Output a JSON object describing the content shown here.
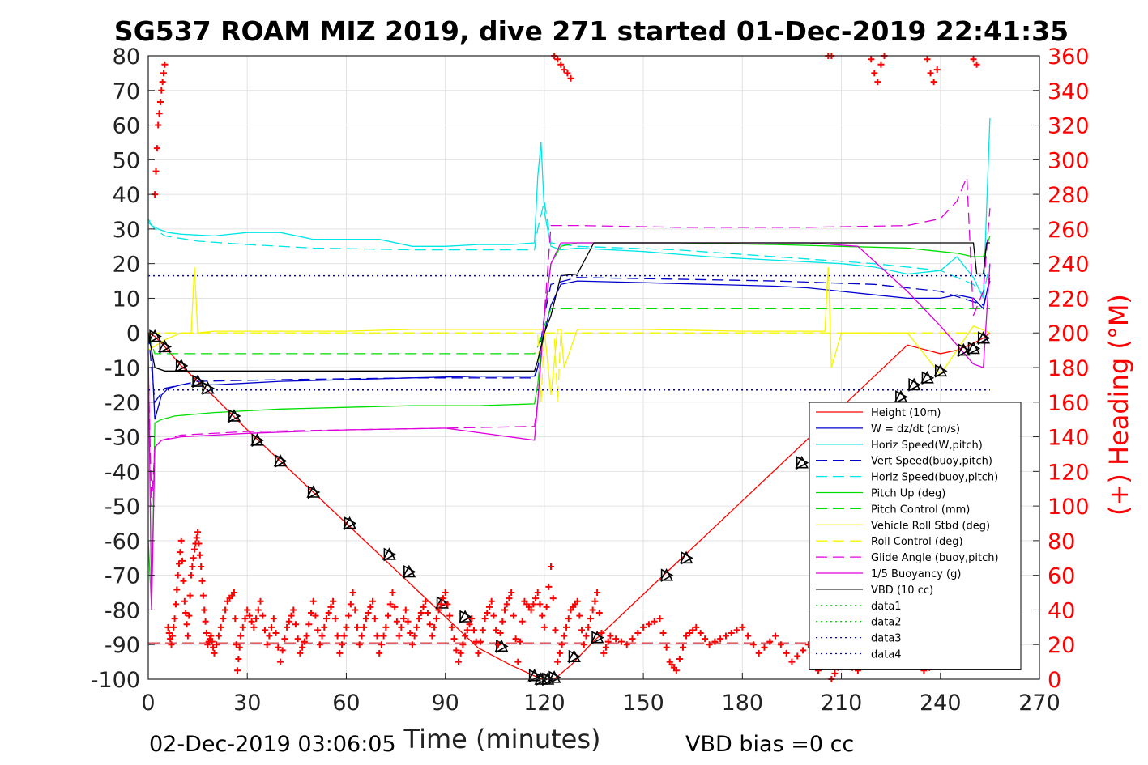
{
  "chart_data": {
    "type": "line",
    "title": "SG537 ROAM MIZ 2019, dive 271 started 01-Dec-2019 22:41:35",
    "xlabel": "Time (minutes)",
    "ylabel": "",
    "ylabel_right": "(+) Heading (°M)",
    "xlim": [
      0,
      270
    ],
    "ylim": [
      -100,
      80
    ],
    "ylim_right": [
      0,
      360
    ],
    "x_ticks": [
      "0",
      "30",
      "60",
      "90",
      "120",
      "150",
      "180",
      "210",
      "240",
      "270"
    ],
    "y_ticks": [
      "80",
      "70",
      "60",
      "50",
      "40",
      "30",
      "20",
      "10",
      "0",
      "-10",
      "-20",
      "-30",
      "-40",
      "-50",
      "-60",
      "-70",
      "-80",
      "-90",
      "-100"
    ],
    "y_ticks_right": [
      "360",
      "340",
      "320",
      "300",
      "280",
      "260",
      "240",
      "220",
      "200",
      "180",
      "160",
      "140",
      "120",
      "100",
      "80",
      "60",
      "40",
      "20",
      "0"
    ],
    "grid": true,
    "legend_position": "bottom-right",
    "footer_left": "02-Dec-2019 03:06:05",
    "footer_right": "VBD bias =0 cc",
    "colors": {
      "height": "#ff0000",
      "w": "#0000cc",
      "horiz_speed": "#00e5e5",
      "pitch": "#00dd00",
      "roll": "#f5f500",
      "glide": "#dd00dd",
      "vbd": "#000000",
      "heading": "#ff0000"
    },
    "series": [
      {
        "name": "Height (10m)",
        "style": "solid",
        "color": "#ff0000",
        "x": [
          0,
          2,
          5,
          10,
          15,
          20,
          30,
          40,
          50,
          60,
          70,
          80,
          90,
          100,
          110,
          118,
          120,
          123,
          128,
          135,
          145,
          155,
          165,
          180,
          195,
          210,
          220,
          230,
          240,
          245,
          250,
          253,
          255
        ],
        "y": [
          0,
          -1,
          -4,
          -9.5,
          -14,
          -18.5,
          -28,
          -37,
          -46,
          -55,
          -64,
          -73,
          -82,
          -91,
          -96,
          -99.5,
          -100,
          -100,
          -96,
          -89,
          -80,
          -71,
          -62,
          -48.5,
          -35,
          -21.5,
          -12.5,
          -3.5,
          -6,
          -5,
          -3,
          -1.5,
          0
        ]
      },
      {
        "name": "W = dz/dt (cm/s)",
        "style": "solid",
        "color": "#0000cc",
        "x": [
          0,
          1,
          2,
          4,
          6,
          10,
          20,
          30,
          40,
          60,
          80,
          100,
          117,
          118,
          120,
          122,
          125,
          130,
          150,
          170,
          190,
          200,
          210,
          220,
          230,
          240,
          245,
          250,
          253,
          255
        ],
        "y": [
          0,
          -5,
          -25,
          -18,
          -16,
          -15,
          -15,
          -14.5,
          -14,
          -13.5,
          -13,
          -12.5,
          -12.5,
          -10,
          0,
          8,
          14,
          15,
          14.5,
          14,
          13.5,
          13,
          12,
          11,
          10,
          10,
          11,
          10,
          7,
          16
        ]
      },
      {
        "name": "Horiz Speed(W,pitch)",
        "style": "solid",
        "color": "#00e5e5",
        "x": [
          0,
          1,
          3,
          6,
          10,
          20,
          30,
          40,
          50,
          60,
          70,
          80,
          90,
          100,
          110,
          117,
          118,
          119,
          120,
          122,
          125,
          130,
          150,
          170,
          190,
          210,
          220,
          230,
          240,
          245,
          250,
          253,
          255
        ],
        "y": [
          33,
          31,
          30,
          29,
          28.5,
          28,
          29,
          29,
          27,
          27,
          27,
          25,
          25,
          25.5,
          25.5,
          26,
          45,
          55,
          35,
          25,
          24,
          24.5,
          23.5,
          22,
          21,
          20,
          19,
          17,
          18,
          22,
          16,
          10,
          62
        ]
      },
      {
        "name": "Vert Speed(buoy,pitch)",
        "style": "dashed",
        "color": "#0000cc",
        "x": [
          0,
          2,
          5,
          15,
          40,
          80,
          117,
          118,
          120,
          122,
          130,
          160,
          190,
          220,
          240,
          250,
          253,
          255
        ],
        "y": [
          0,
          -20,
          -16,
          -14,
          -13.5,
          -13,
          -13,
          -10,
          5,
          14,
          16,
          15.5,
          15,
          14,
          12,
          9,
          8,
          15
        ]
      },
      {
        "name": "Horiz Speed(buoy,pitch)",
        "style": "dashed",
        "color": "#00e5e5",
        "x": [
          0,
          2,
          5,
          15,
          30,
          50,
          80,
          117,
          118,
          120,
          122,
          130,
          160,
          190,
          220,
          240,
          250,
          253,
          255
        ],
        "y": [
          32,
          30,
          28,
          26.5,
          25.5,
          24.5,
          24,
          24,
          30,
          38,
          26,
          25,
          24,
          22,
          20,
          18,
          14,
          11,
          20
        ]
      },
      {
        "name": "Pitch Up (deg)",
        "style": "solid",
        "color": "#00dd00",
        "x": [
          0,
          1,
          2,
          4,
          8,
          20,
          40,
          60,
          80,
          100,
          117,
          118,
          120,
          122,
          125,
          130,
          160,
          190,
          210,
          230,
          245,
          250,
          253,
          255
        ],
        "y": [
          -60,
          -80,
          -26,
          -25,
          -24,
          -23,
          -22,
          -21.5,
          -21,
          -21,
          -20.5,
          -15,
          5,
          20,
          25,
          26,
          26,
          25.5,
          25,
          24.5,
          23,
          22,
          22,
          28
        ]
      },
      {
        "name": "Pitch Control (mm)",
        "style": "dashed",
        "color": "#00dd00",
        "x": [
          0,
          2,
          10,
          117,
          118,
          120,
          122,
          255
        ],
        "y": [
          0,
          -6,
          -6,
          -6,
          -4,
          2,
          7,
          7
        ]
      },
      {
        "name": "Vehicle Roll Stbd (deg)",
        "style": "solid",
        "color": "#f5f500",
        "x": [
          0,
          5,
          10,
          13,
          14,
          15,
          20,
          40,
          60,
          80,
          100,
          117,
          120,
          122,
          124,
          125,
          126,
          130,
          150,
          180,
          205,
          206,
          207,
          210,
          230,
          240,
          250,
          255
        ],
        "y": [
          -5,
          -2,
          0,
          0,
          19,
          0,
          0.5,
          0.5,
          0.5,
          1,
          1,
          1,
          1,
          -18,
          1,
          1,
          -10,
          1,
          1,
          0.5,
          0.5,
          19,
          -10,
          0,
          0,
          -12,
          2,
          0
        ]
      },
      {
        "name": "Roll Control (deg)",
        "style": "dashed",
        "color": "#f5f500",
        "x": [
          0,
          10,
          117,
          118,
          119,
          120,
          123,
          124,
          125,
          255
        ],
        "y": [
          0,
          0,
          0,
          0,
          -20,
          0,
          0,
          -20,
          0,
          0
        ]
      },
      {
        "name": "Glide Angle (buoy,pitch)",
        "style": "dashed",
        "color": "#dd00dd",
        "x": [
          0,
          1,
          2,
          4,
          10,
          30,
          60,
          90,
          117,
          118,
          120,
          122,
          130,
          160,
          200,
          230,
          240,
          245,
          248,
          250,
          253,
          255
        ],
        "y": [
          -10,
          -50,
          -33,
          -31,
          -29.5,
          -28.5,
          -28,
          -27.5,
          -27,
          -20,
          5,
          31,
          31,
          30.5,
          30.5,
          31,
          33,
          38,
          45,
          5,
          12,
          36
        ]
      },
      {
        "name": "1/5 Buoyancy (g)",
        "style": "solid",
        "color": "#dd00dd",
        "x": [
          0,
          1,
          2,
          4,
          10,
          30,
          60,
          90,
          117,
          118,
          120,
          122,
          125,
          130,
          160,
          190,
          200,
          215,
          230,
          240,
          250,
          253,
          255
        ],
        "y": [
          -5,
          -80,
          -33,
          -31,
          -30,
          -29,
          -28,
          -27.5,
          -31,
          -20,
          5,
          20,
          26,
          26,
          26,
          26,
          26,
          25,
          12,
          2,
          -9,
          -10,
          20
        ]
      },
      {
        "name": "VBD (10 cc)",
        "style": "solid",
        "color": "#000000",
        "x": [
          0,
          1,
          2,
          5,
          10,
          117,
          118,
          119,
          120,
          122,
          125,
          130,
          135,
          250,
          251,
          253,
          254,
          255
        ],
        "y": [
          0,
          -5,
          -10,
          -11,
          -11,
          -11,
          -8,
          -4,
          0,
          5,
          16.5,
          17,
          26,
          26,
          17,
          17,
          26,
          26
        ]
      },
      {
        "name": "data1",
        "style": "dotted",
        "color": "#00dd00",
        "x": [],
        "y": []
      },
      {
        "name": "data2",
        "style": "dotted",
        "color": "#00dd00",
        "x": [],
        "y": []
      },
      {
        "name": "data3",
        "style": "dotted",
        "color": "#0000cc",
        "x": [
          0,
          255
        ],
        "y": [
          16.5,
          16.5
        ]
      },
      {
        "name": "data4",
        "style": "dotted",
        "color": "#0000cc",
        "x": [
          0,
          255
        ],
        "y": [
          -16.5,
          -16.5
        ]
      }
    ],
    "heading_series": {
      "name": "(+) Heading",
      "axis": "right",
      "marker": "+",
      "color": "#ff0000",
      "x": [
        2,
        3,
        4,
        5,
        6,
        7,
        8,
        9,
        10,
        11,
        12,
        13,
        14,
        15,
        16,
        17,
        18,
        19,
        20,
        22,
        24,
        26,
        27,
        28,
        30,
        32,
        34,
        36,
        38,
        40,
        42,
        44,
        46,
        48,
        50,
        52,
        54,
        56,
        58,
        60,
        62,
        64,
        66,
        68,
        70,
        72,
        74,
        76,
        78,
        80,
        82,
        84,
        86,
        88,
        90,
        92,
        94,
        96,
        98,
        100,
        102,
        104,
        106,
        108,
        110,
        112,
        114,
        116,
        118,
        120,
        122,
        124,
        126,
        128,
        130,
        132,
        134,
        136,
        138,
        140,
        145,
        150,
        155,
        158,
        160,
        163,
        166,
        170,
        175,
        180,
        185,
        190,
        195,
        200,
        203,
        205,
        207,
        210,
        215,
        220,
        225,
        230,
        235,
        240,
        245,
        250,
        253
      ],
      "y": [
        280,
        320,
        340,
        355,
        30,
        20,
        35,
        60,
        80,
        45,
        25,
        60,
        75,
        85,
        65,
        40,
        20,
        25,
        15,
        30,
        45,
        50,
        5,
        25,
        40,
        30,
        45,
        20,
        35,
        10,
        30,
        40,
        15,
        25,
        45,
        20,
        35,
        45,
        15,
        30,
        50,
        20,
        35,
        45,
        15,
        30,
        50,
        25,
        40,
        20,
        35,
        45,
        25,
        40,
        50,
        30,
        10,
        25,
        35,
        15,
        35,
        45,
        20,
        40,
        50,
        10,
        45,
        40,
        50,
        30,
        65,
        10,
        25,
        40,
        45,
        20,
        35,
        50,
        15,
        25,
        20,
        30,
        35,
        10,
        5,
        25,
        30,
        20,
        25,
        30,
        15,
        25,
        10,
        20,
        5,
        45,
        0,
        10,
        5,
        25,
        10,
        20,
        5,
        10,
        20,
        10,
        15
      ]
    },
    "heading_top_cluster": {
      "x": [
        123,
        124,
        125,
        126,
        127,
        128,
        206,
        207,
        219,
        220,
        221,
        222,
        223,
        236,
        237,
        238,
        239,
        250,
        251
      ],
      "y": [
        360,
        358,
        355,
        352,
        350,
        347,
        360,
        360,
        358,
        350,
        345,
        355,
        360,
        358,
        350,
        345,
        352,
        358,
        355
      ]
    },
    "markers": {
      "note": "triangle markers along Height trace",
      "x": [
        2,
        5,
        10,
        15,
        18,
        26,
        33,
        40,
        50,
        61,
        73,
        79,
        89,
        96,
        107,
        117,
        119,
        121,
        123,
        129,
        136,
        157,
        163,
        198,
        228,
        232,
        236,
        240,
        247,
        250,
        253
      ],
      "y": [
        -1,
        -4,
        -9.5,
        -14,
        -16,
        -24,
        -31,
        -37,
        -46,
        -55,
        -64,
        -69,
        -78,
        -82,
        -90.5,
        -99,
        -100,
        -100,
        -99.5,
        -93.5,
        -88,
        -70,
        -65,
        -37.5,
        -18.5,
        -15,
        -13,
        -11,
        -5,
        -4.5,
        -1.5
      ]
    },
    "ref_line_red_dashed": {
      "y": -89.5,
      "x": [
        0,
        255
      ]
    }
  }
}
